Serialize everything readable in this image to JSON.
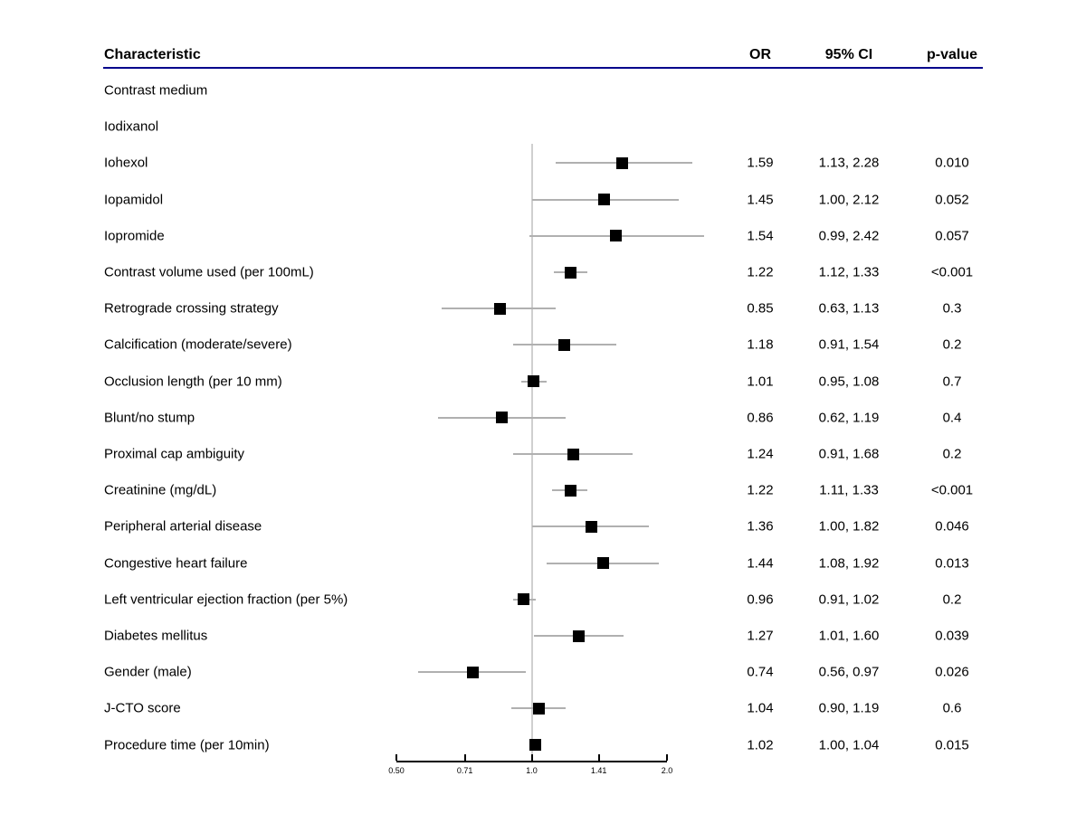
{
  "header": {
    "characteristic": "Characteristic",
    "or": "OR",
    "ci": "95% CI",
    "p": "p-value"
  },
  "colors": {
    "header_rule": "#00008B",
    "text": "#000000",
    "marker": "#000000",
    "ci_line": "#b0b0b0",
    "ref_line": "#cfcfcf",
    "axis_line": "#000000"
  },
  "chart_data": {
    "type": "forest",
    "title": "",
    "xlabel": "",
    "scale": "log2",
    "xlim": [
      0.5,
      2.0
    ],
    "ref_line": 1.0,
    "axis_ticks": [
      {
        "value": 0.5,
        "label": "0.50"
      },
      {
        "value": 0.71,
        "label": "0.71"
      },
      {
        "value": 1.0,
        "label": "1.0"
      },
      {
        "value": 1.41,
        "label": "1.41"
      },
      {
        "value": 2.0,
        "label": "2.0"
      }
    ],
    "rows": [
      {
        "label": "Contrast medium",
        "or": null,
        "lo": null,
        "hi": null,
        "or_text": "",
        "ci_text": "",
        "p_text": ""
      },
      {
        "label": "Iodixanol",
        "or": null,
        "lo": null,
        "hi": null,
        "or_text": "",
        "ci_text": "",
        "p_text": ""
      },
      {
        "label": "Iohexol",
        "or": 1.59,
        "lo": 1.13,
        "hi": 2.28,
        "or_text": "1.59",
        "ci_text": "1.13, 2.28",
        "p_text": "0.010"
      },
      {
        "label": "Iopamidol",
        "or": 1.45,
        "lo": 1.0,
        "hi": 2.12,
        "or_text": "1.45",
        "ci_text": "1.00, 2.12",
        "p_text": "0.052"
      },
      {
        "label": "Iopromide",
        "or": 1.54,
        "lo": 0.99,
        "hi": 2.42,
        "or_text": "1.54",
        "ci_text": "0.99, 2.42",
        "p_text": "0.057"
      },
      {
        "label": "Contrast volume used (per 100mL)",
        "or": 1.22,
        "lo": 1.12,
        "hi": 1.33,
        "or_text": "1.22",
        "ci_text": "1.12, 1.33",
        "p_text": "<0.001"
      },
      {
        "label": "Retrograde crossing strategy",
        "or": 0.85,
        "lo": 0.63,
        "hi": 1.13,
        "or_text": "0.85",
        "ci_text": "0.63, 1.13",
        "p_text": "0.3"
      },
      {
        "label": "Calcification (moderate/severe)",
        "or": 1.18,
        "lo": 0.91,
        "hi": 1.54,
        "or_text": "1.18",
        "ci_text": "0.91, 1.54",
        "p_text": "0.2"
      },
      {
        "label": "Occlusion length (per 10 mm)",
        "or": 1.01,
        "lo": 0.95,
        "hi": 1.08,
        "or_text": "1.01",
        "ci_text": "0.95, 1.08",
        "p_text": "0.7"
      },
      {
        "label": "Blunt/no stump",
        "or": 0.86,
        "lo": 0.62,
        "hi": 1.19,
        "or_text": "0.86",
        "ci_text": "0.62, 1.19",
        "p_text": "0.4"
      },
      {
        "label": "Proximal cap ambiguity",
        "or": 1.24,
        "lo": 0.91,
        "hi": 1.68,
        "or_text": "1.24",
        "ci_text": "0.91, 1.68",
        "p_text": "0.2"
      },
      {
        "label": "Creatinine (mg/dL)",
        "or": 1.22,
        "lo": 1.11,
        "hi": 1.33,
        "or_text": "1.22",
        "ci_text": "1.11, 1.33",
        "p_text": "<0.001"
      },
      {
        "label": "Peripheral arterial disease",
        "or": 1.36,
        "lo": 1.0,
        "hi": 1.82,
        "or_text": "1.36",
        "ci_text": "1.00, 1.82",
        "p_text": "0.046"
      },
      {
        "label": "Congestive heart failure",
        "or": 1.44,
        "lo": 1.08,
        "hi": 1.92,
        "or_text": "1.44",
        "ci_text": "1.08, 1.92",
        "p_text": "0.013"
      },
      {
        "label": "Left ventricular ejection fraction (per 5%)",
        "or": 0.96,
        "lo": 0.91,
        "hi": 1.02,
        "or_text": "0.96",
        "ci_text": "0.91, 1.02",
        "p_text": "0.2"
      },
      {
        "label": "Diabetes mellitus",
        "or": 1.27,
        "lo": 1.01,
        "hi": 1.6,
        "or_text": "1.27",
        "ci_text": "1.01, 1.60",
        "p_text": "0.039"
      },
      {
        "label": "Gender (male)",
        "or": 0.74,
        "lo": 0.56,
        "hi": 0.97,
        "or_text": "0.74",
        "ci_text": "0.56, 0.97",
        "p_text": "0.026"
      },
      {
        "label": "J-CTO score",
        "or": 1.04,
        "lo": 0.9,
        "hi": 1.19,
        "or_text": "1.04",
        "ci_text": "0.90, 1.19",
        "p_text": "0.6"
      },
      {
        "label": "Procedure time (per 10min)",
        "or": 1.02,
        "lo": 1.0,
        "hi": 1.04,
        "or_text": "1.02",
        "ci_text": "1.00, 1.04",
        "p_text": "0.015"
      }
    ]
  }
}
